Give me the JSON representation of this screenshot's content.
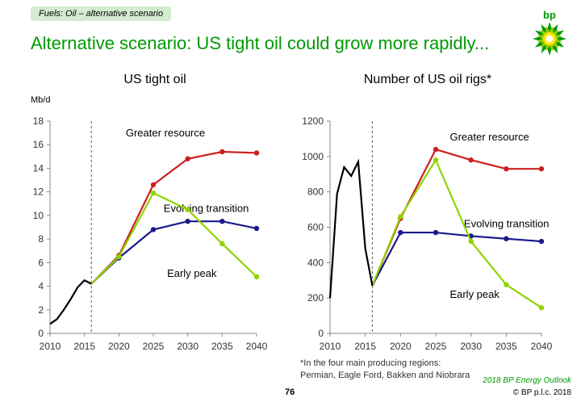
{
  "header": {
    "tag": "Fuels: Oil – alternative scenario",
    "title": "Alternative scenario: US tight oil could grow more rapidly...",
    "logo_text": "bp"
  },
  "footer": {
    "footnote_line1": "*In the four main producing regions:",
    "footnote_line2": "Permian, Eagle Ford, Bakken and Niobrara",
    "page_number": "76",
    "outlook": "2018 BP Energy Outlook",
    "copyright": "© BP p.l.c. 2018"
  },
  "chart_data": [
    {
      "type": "line",
      "title": "US tight oil",
      "ylabel": "Mb/d",
      "xlim": [
        2010,
        2040
      ],
      "ylim": [
        0,
        18
      ],
      "xticks": [
        "2010",
        "2015",
        "2020",
        "2025",
        "2030",
        "2035",
        "2040"
      ],
      "yticks": [
        "0",
        "2",
        "4",
        "6",
        "8",
        "10",
        "12",
        "14",
        "16",
        "18"
      ],
      "divider_x": 2016,
      "grid": false,
      "history": {
        "x": [
          2010,
          2011,
          2012,
          2013,
          2014,
          2015,
          2016
        ],
        "y": [
          0.8,
          1.2,
          2.0,
          2.9,
          3.9,
          4.5,
          4.2
        ],
        "color": "#000000"
      },
      "series": [
        {
          "name": "Greater resource",
          "x": [
            2016,
            2020,
            2025,
            2030,
            2035,
            2040
          ],
          "y": [
            4.2,
            6.6,
            12.6,
            14.8,
            15.4,
            15.3
          ],
          "color": "#cc1f1f",
          "label_pos": [
            2021,
            16.7
          ]
        },
        {
          "name": "Evolving transition",
          "x": [
            2016,
            2020,
            2025,
            2030,
            2035,
            2040
          ],
          "y": [
            4.2,
            6.4,
            8.8,
            9.5,
            9.5,
            8.9
          ],
          "color": "#1a1a8c",
          "label_pos": [
            2026.5,
            10.3
          ]
        },
        {
          "name": "Early peak",
          "x": [
            2016,
            2020,
            2025,
            2030,
            2035,
            2040
          ],
          "y": [
            4.2,
            6.5,
            11.9,
            10.5,
            7.6,
            4.8
          ],
          "color": "#8fd400",
          "label_pos": [
            2027,
            4.8
          ]
        }
      ]
    },
    {
      "type": "line",
      "title": "Number of US oil rigs*",
      "xlim": [
        2010,
        2040
      ],
      "ylim": [
        0,
        1200
      ],
      "xticks": [
        "2010",
        "2015",
        "2020",
        "2025",
        "2030",
        "2035",
        "2040"
      ],
      "yticks": [
        "0",
        "200",
        "400",
        "600",
        "800",
        "1000",
        "1200"
      ],
      "divider_x": 2016,
      "grid": false,
      "history": {
        "x": [
          2010,
          2011,
          2012,
          2013,
          2014,
          2015,
          2016
        ],
        "y": [
          200,
          790,
          940,
          890,
          970,
          480,
          270
        ],
        "color": "#000000"
      },
      "series": [
        {
          "name": "Greater resource",
          "x": [
            2016,
            2020,
            2025,
            2030,
            2035,
            2040
          ],
          "y": [
            270,
            650,
            1040,
            980,
            930,
            930
          ],
          "color": "#cc1f1f",
          "label_pos": [
            2027,
            1090
          ]
        },
        {
          "name": "Evolving transition",
          "x": [
            2016,
            2020,
            2025,
            2030,
            2035,
            2040
          ],
          "y": [
            270,
            570,
            570,
            550,
            535,
            520
          ],
          "color": "#1a1a8c",
          "label_pos": [
            2029,
            600
          ]
        },
        {
          "name": "Early peak",
          "x": [
            2016,
            2020,
            2025,
            2030,
            2035,
            2040
          ],
          "y": [
            270,
            660,
            980,
            520,
            275,
            145
          ],
          "color": "#8fd400",
          "label_pos": [
            2027,
            200
          ]
        }
      ]
    }
  ]
}
